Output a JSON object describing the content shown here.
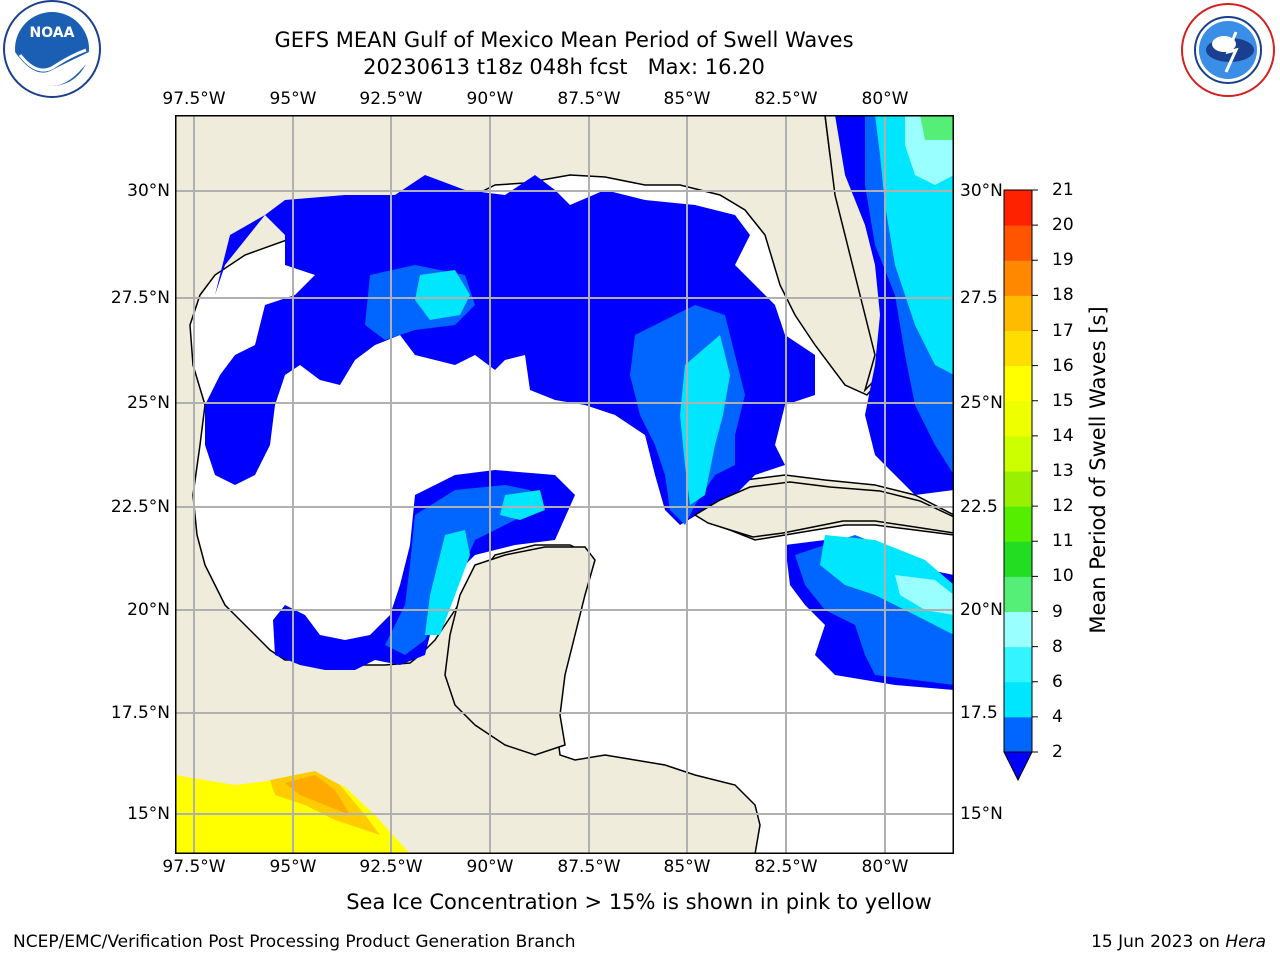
{
  "header": {
    "title_line1": "GEFS MEAN Gulf of Mexico Mean Period of Swell Waves",
    "title_line2": "20230613 t18z 048h fcst   Max: 16.20"
  },
  "logos": {
    "left": {
      "icon": "noaa-logo-icon",
      "text": "NOAA",
      "ring_text": "NATIONAL OCEANIC AND ATMOSPHERIC ADMINISTRATION · U.S. DEPARTMENT OF COMMERCE"
    },
    "right": {
      "icon": "nws-logo-icon",
      "ring_text": "NATIONAL WEATHER SERVICE"
    }
  },
  "map": {
    "lon_labels": [
      "97.5°W",
      "95°W",
      "92.5°W",
      "90°W",
      "87.5°W",
      "85°W",
      "82.5°W",
      "80°W"
    ],
    "lat_labels_left": [
      "30°N",
      "27.5°N",
      "25°N",
      "22.5°N",
      "20°N",
      "17.5°N",
      "15°N"
    ],
    "lat_labels_right": [
      "30°N",
      "27.5",
      "25°N",
      "22.5",
      "20°N",
      "17.5",
      "15°N"
    ],
    "land_color": "#efecdc",
    "ocean_color": "#ffffff",
    "grid_color": "#b0b0b0"
  },
  "colorbar": {
    "label": "Mean Period of Swell Waves [s]",
    "ticks": [
      "2",
      "4",
      "6",
      "8",
      "9",
      "10",
      "11",
      "12",
      "13",
      "14",
      "15",
      "16",
      "17",
      "18",
      "19",
      "20",
      "21"
    ],
    "colors": [
      "#0066ff",
      "#00e6ff",
      "#33f5ff",
      "#99ffff",
      "#55ee77",
      "#22dd22",
      "#55ee00",
      "#99f000",
      "#ccff00",
      "#eeff00",
      "#ffff00",
      "#ffdd00",
      "#ffbb00",
      "#ff8800",
      "#ff5500",
      "#ff2200"
    ],
    "under_color": "#0000ff"
  },
  "caption": "Sea Ice Concentration > 15% is shown in pink to yellow",
  "footer": {
    "left": "NCEP/EMC/Verification Post Processing Product Generation Branch",
    "right_date": "15 Jun 2023 on ",
    "right_host": "Hera"
  }
}
